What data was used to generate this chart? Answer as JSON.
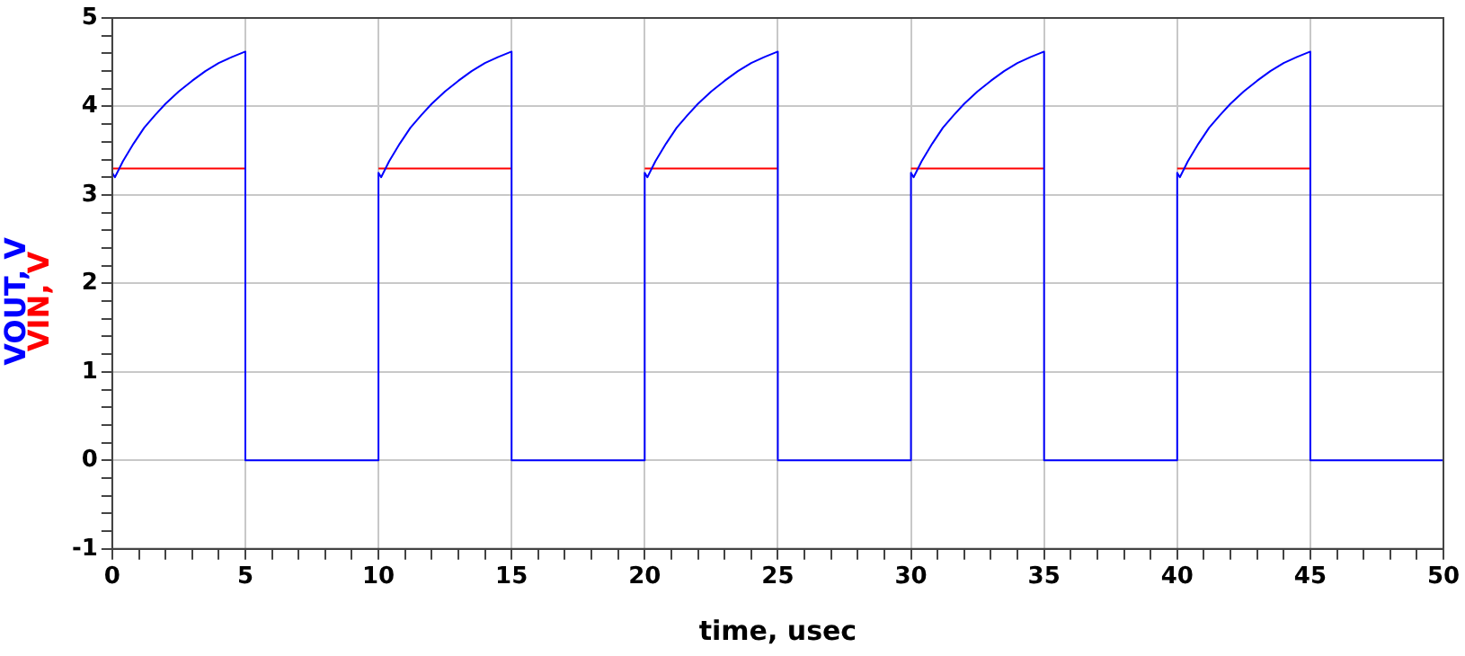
{
  "chart_data": {
    "type": "line",
    "xlabel": "time, usec",
    "xlim": [
      0,
      50
    ],
    "ylim": [
      -1,
      5
    ],
    "xticks": [
      0,
      {
        "value": 1,
        "label": null
      },
      {
        "value": 2,
        "label": null
      },
      {
        "value": 3,
        "label": null
      },
      {
        "value": 4,
        "label": null
      },
      5,
      {
        "value": 6,
        "label": null
      },
      {
        "value": 7,
        "label": null
      },
      {
        "value": 8,
        "label": null
      },
      {
        "value": 9,
        "label": null
      },
      10,
      {
        "value": 11,
        "label": null
      },
      {
        "value": 12,
        "label": null
      },
      {
        "value": 13,
        "label": null
      },
      {
        "value": 14,
        "label": null
      },
      15,
      {
        "value": 16,
        "label": null
      },
      {
        "value": 17,
        "label": null
      },
      {
        "value": 18,
        "label": null
      },
      {
        "value": 19,
        "label": null
      },
      20,
      {
        "value": 21,
        "label": null
      },
      {
        "value": 22,
        "label": null
      },
      {
        "value": 23,
        "label": null
      },
      {
        "value": 24,
        "label": null
      },
      25,
      {
        "value": 26,
        "label": null
      },
      {
        "value": 27,
        "label": null
      },
      {
        "value": 28,
        "label": null
      },
      {
        "value": 29,
        "label": null
      },
      30,
      {
        "value": 31,
        "label": null
      },
      {
        "value": 32,
        "label": null
      },
      {
        "value": 33,
        "label": null
      },
      {
        "value": 34,
        "label": null
      },
      35,
      {
        "value": 36,
        "label": null
      },
      {
        "value": 37,
        "label": null
      },
      {
        "value": 38,
        "label": null
      },
      {
        "value": 39,
        "label": null
      },
      40,
      {
        "value": 41,
        "label": null
      },
      {
        "value": 42,
        "label": null
      },
      {
        "value": 43,
        "label": null
      },
      {
        "value": 44,
        "label": null
      },
      45,
      {
        "value": 46,
        "label": null
      },
      {
        "value": 47,
        "label": null
      },
      {
        "value": 48,
        "label": null
      },
      {
        "value": 49,
        "label": null
      },
      50
    ],
    "yticks": [
      -1,
      {
        "value": -0.8,
        "label": null
      },
      {
        "value": -0.6,
        "label": null
      },
      {
        "value": -0.4,
        "label": null
      },
      {
        "value": -0.2,
        "label": null
      },
      0,
      {
        "value": 0.2,
        "label": null
      },
      {
        "value": 0.4,
        "label": null
      },
      {
        "value": 0.6,
        "label": null
      },
      {
        "value": 0.8,
        "label": null
      },
      1,
      {
        "value": 1.2,
        "label": null
      },
      {
        "value": 1.4,
        "label": null
      },
      {
        "value": 1.6,
        "label": null
      },
      {
        "value": 1.8,
        "label": null
      },
      2,
      {
        "value": 2.2,
        "label": null
      },
      {
        "value": 2.4,
        "label": null
      },
      {
        "value": 2.6,
        "label": null
      },
      {
        "value": 2.8,
        "label": null
      },
      3,
      {
        "value": 3.2,
        "label": null
      },
      {
        "value": 3.4,
        "label": null
      },
      {
        "value": 3.6,
        "label": null
      },
      {
        "value": 3.8,
        "label": null
      },
      4,
      {
        "value": 4.2,
        "label": null
      },
      {
        "value": 4.4,
        "label": null
      },
      {
        "value": 4.6,
        "label": null
      },
      {
        "value": 4.8,
        "label": null
      },
      5
    ],
    "grid": true,
    "legend": false,
    "marker": "none",
    "line_style": "solid",
    "series": [
      {
        "name": "VOUT, V",
        "color": "#0000ff",
        "x": [
          0,
          0.1,
          0.4,
          0.8,
          1.2,
          1.6,
          2,
          2.5,
          3,
          3.5,
          4,
          4.5,
          5,
          5,
          10,
          10,
          10.1,
          10.4,
          10.8,
          11.2,
          11.6,
          12,
          12.5,
          13,
          13.5,
          14,
          14.5,
          15,
          15,
          20,
          20,
          20.1,
          20.4,
          20.8,
          21.2,
          21.6,
          22,
          22.5,
          23,
          23.5,
          24,
          24.5,
          25,
          25,
          30,
          30,
          30.1,
          30.4,
          30.8,
          31.2,
          31.6,
          32,
          32.5,
          33,
          33.5,
          34,
          34.5,
          35,
          35,
          40,
          40,
          40.1,
          40.4,
          40.8,
          41.2,
          41.6,
          42,
          42.5,
          43,
          43.5,
          44,
          44.5,
          45,
          45,
          50
        ],
        "values": [
          3.25,
          3.2,
          3.38,
          3.58,
          3.76,
          3.9,
          4.03,
          4.17,
          4.29,
          4.4,
          4.49,
          4.56,
          4.62,
          0,
          0,
          3.25,
          3.2,
          3.38,
          3.58,
          3.76,
          3.9,
          4.03,
          4.17,
          4.29,
          4.4,
          4.49,
          4.56,
          4.62,
          0,
          0,
          3.25,
          3.2,
          3.38,
          3.58,
          3.76,
          3.9,
          4.03,
          4.17,
          4.29,
          4.4,
          4.49,
          4.56,
          4.62,
          0,
          0,
          3.25,
          3.2,
          3.38,
          3.58,
          3.76,
          3.9,
          4.03,
          4.17,
          4.29,
          4.4,
          4.49,
          4.56,
          4.62,
          0,
          0,
          3.25,
          3.2,
          3.38,
          3.58,
          3.76,
          3.9,
          4.03,
          4.17,
          4.29,
          4.4,
          4.49,
          4.56,
          4.62,
          0,
          0
        ]
      },
      {
        "name": "VIN, V",
        "color": "#ff0000",
        "x": [
          0,
          5,
          7.5,
          10,
          15,
          17.5,
          20,
          25,
          27.5,
          30,
          35,
          37.5,
          40,
          45
        ],
        "values": [
          3.3,
          3.3,
          null,
          3.3,
          3.3,
          null,
          3.3,
          3.3,
          null,
          3.3,
          3.3,
          null,
          3.3,
          3.3
        ]
      }
    ]
  }
}
